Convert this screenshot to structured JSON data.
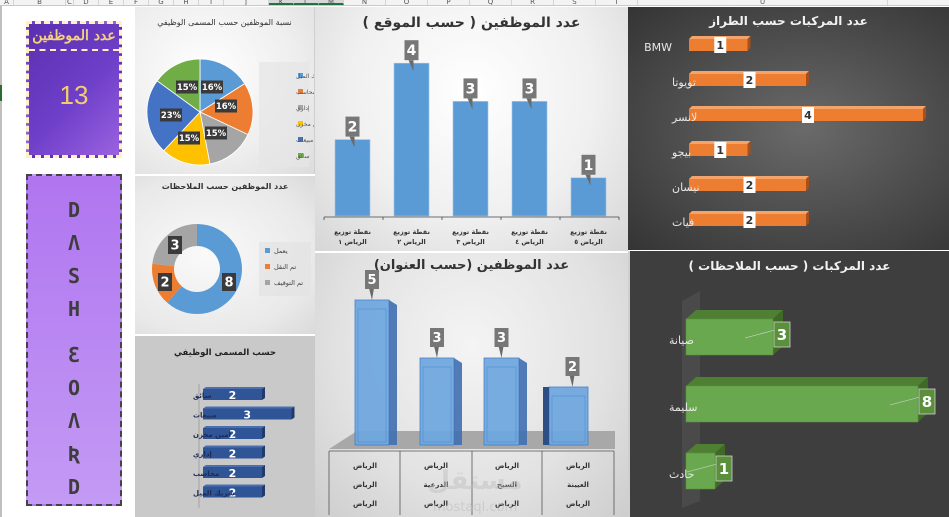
{
  "spreadsheet": {
    "columns": [
      "A",
      "B",
      "C",
      "D",
      "E",
      "F",
      "G",
      "H",
      "I",
      "J",
      "K",
      "L",
      "M",
      "N",
      "O",
      "P",
      "Q",
      "R",
      "S",
      "T",
      "U"
    ],
    "selected_columns": [
      "K",
      "L",
      "M"
    ]
  },
  "employee_count_card": {
    "label": "عدد الموظفين",
    "value": "13"
  },
  "dashboard_card": {
    "letters": [
      "D",
      "Λ",
      "S",
      "H",
      "",
      "Ɛ",
      "O",
      "Λ",
      "Ʀ",
      "D"
    ],
    "text": "DASH BOARD"
  },
  "colors": {
    "purple_card": "#6e3fc9",
    "lavender_card": "#b886f2",
    "bar_blue": "#5b9bd5",
    "bar_orange": "#ed7d31",
    "bar_green": "#6aa84f",
    "navy_bar": "#2f5597",
    "pie_green": "#70ad47",
    "pie_yellow": "#ffc000",
    "pie_gray": "#a5a5a5"
  },
  "chart_data": [
    {
      "id": "job_title_pie",
      "type": "pie",
      "title": "نسبة الموظفين حسب المسمى الوظيفي",
      "categories": [
        "شريك الميل",
        "محاسب",
        "إداري",
        "أمين مخزن",
        "مبيعات",
        "سائق"
      ],
      "values": [
        16,
        16,
        15,
        15,
        23,
        15
      ],
      "labels": [
        "16%",
        "16%",
        "15%",
        "15%",
        "23%",
        "15%"
      ],
      "colors": [
        "#5b9bd5",
        "#ed7d31",
        "#a5a5a5",
        "#ffc000",
        "#4472c4",
        "#70ad47"
      ],
      "legend_position": "right"
    },
    {
      "id": "notes_donut",
      "type": "pie",
      "subtype": "donut",
      "title": "عدد الموظفين حسب الملاحظات",
      "categories": [
        "يعمل",
        "تم النقل",
        "تم التوقيف"
      ],
      "values": [
        8,
        2,
        3
      ],
      "colors": [
        "#5b9bd5",
        "#ed7d31",
        "#a5a5a5"
      ],
      "legend_position": "right"
    },
    {
      "id": "job_title_bar",
      "type": "bar",
      "orientation": "horizontal",
      "title": "حسب المسمى الوظيفي",
      "categories": [
        "سائق",
        "مبيعات",
        "أمين مخزن",
        "إداري",
        "محاسب",
        "شريك الميل"
      ],
      "values": [
        2,
        3,
        2,
        2,
        2,
        2
      ],
      "color": "#2f5597"
    },
    {
      "id": "location_bar",
      "type": "bar",
      "title": "عدد الموظفين  ( حسب الموقع )",
      "categories": [
        "نقطة توزيع الرياض ١",
        "نقطة توزيع الرياض ٢",
        "نقطة توزيع الرياض ٣",
        "نقطة توزيع الرياض ٤",
        "نقطة توزيع الرياض ٥"
      ],
      "category_lines": [
        [
          "نقطة توزيع",
          "الرياض ١"
        ],
        [
          "نقطة توزيع",
          "الرياض ٢"
        ],
        [
          "نقطة توزيع",
          "الرياض ٣"
        ],
        [
          "نقطة توزيع",
          "الرياض ٤"
        ],
        [
          "نقطة توزيع",
          "الرياض ٥"
        ]
      ],
      "values": [
        2,
        4,
        3,
        3,
        1
      ],
      "ylim": [
        0,
        4.6
      ],
      "grid": false,
      "color": "#5b9bd5"
    },
    {
      "id": "address_bar",
      "type": "bar",
      "subtype": "3d-column",
      "title": "عدد الموظفين (حسب العنوان)",
      "categories": [
        "الرياض / الرياض / الرياض",
        "الرياض / الدرعية / الرياض",
        "الرياض / السيح / الرياض",
        "الرياض / العيينة / الرياض"
      ],
      "category_lines": [
        [
          "الرياض",
          "الرياض",
          "الرياض"
        ],
        [
          "الرياض",
          "الدرعية",
          "الرياض"
        ],
        [
          "الرياض",
          "السيح",
          "الرياض"
        ],
        [
          "الرياض",
          "العيينة",
          "الرياض"
        ]
      ],
      "values": [
        5,
        3,
        3,
        2
      ],
      "color": "#5b9bd5"
    },
    {
      "id": "model_bar",
      "type": "bar",
      "orientation": "horizontal",
      "title": "عدد المركبات حسب الطراز",
      "categories": [
        "BMW",
        "تويوتا",
        "لانسر",
        "بيجو",
        "نيسان",
        "فيات"
      ],
      "values": [
        1,
        2,
        4,
        1,
        2,
        2
      ],
      "color": "#ed7d31"
    },
    {
      "id": "vehicle_notes_bar",
      "type": "bar",
      "orientation": "horizontal",
      "subtype": "3d-bar",
      "title": "عدد المركبات ( حسب الملاحظات )",
      "categories": [
        "صيانة",
        "سليمة",
        "حادث"
      ],
      "values": [
        3,
        8,
        1
      ],
      "color": "#6aa84f"
    }
  ],
  "watermark": {
    "text": "مستقل",
    "subtext": "mostaql.com"
  }
}
